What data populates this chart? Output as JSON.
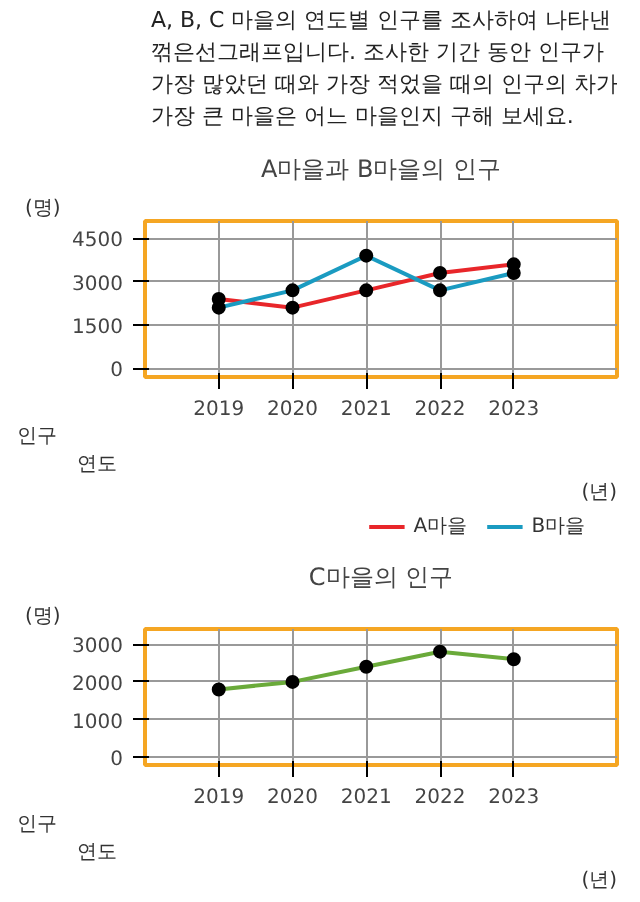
{
  "chart_data": [
    {
      "type": "other",
      "annotations": [
        "A, B, C 마을의 연도별 인구를 조사하여 나타낸 꺾은선그래프입니다. 조사한 기간 동안 인구가 가장 많았던 때와 가장 적었을 때의 인구의 차가 가장 큰 마을은 어느 마을인지 구해 보세요."
      ]
    },
    {
      "type": "line",
      "title": "A마을과 B마을의 인구",
      "xlabel": "(년)",
      "ylabel": "(명)",
      "annotations": [
        "인구",
        "연도"
      ],
      "categories": [
        "2019",
        "2020",
        "2021",
        "2022",
        "2023"
      ],
      "series": [
        {
          "name": "A마을",
          "color": "#e8262a",
          "values": [
            2400,
            2100,
            2700,
            3300,
            3600
          ]
        },
        {
          "name": "B마을",
          "color": "#1a9bc1",
          "values": [
            2100,
            2700,
            3900,
            2700,
            3300
          ]
        }
      ],
      "ylim": [
        -300,
        5100
      ],
      "yticks": [
        0,
        1500,
        3000,
        4500
      ],
      "grid": true,
      "legend": "bottom right",
      "marker": "circle"
    },
    {
      "type": "line",
      "title": "C마을의 인구",
      "xlabel": "(년)",
      "ylabel": "(명)",
      "annotations": [
        "인구",
        "연도"
      ],
      "categories": [
        "2019",
        "2020",
        "2021",
        "2022",
        "2023"
      ],
      "series": [
        {
          "color": "#6aaa3a",
          "values": [
            1800,
            2000,
            2400,
            2800,
            2600
          ]
        }
      ],
      "ylim": [
        -200,
        3400
      ],
      "yticks": [
        0,
        1000,
        2000,
        3000
      ],
      "grid": true,
      "legend": false,
      "marker": "circle"
    }
  ]
}
